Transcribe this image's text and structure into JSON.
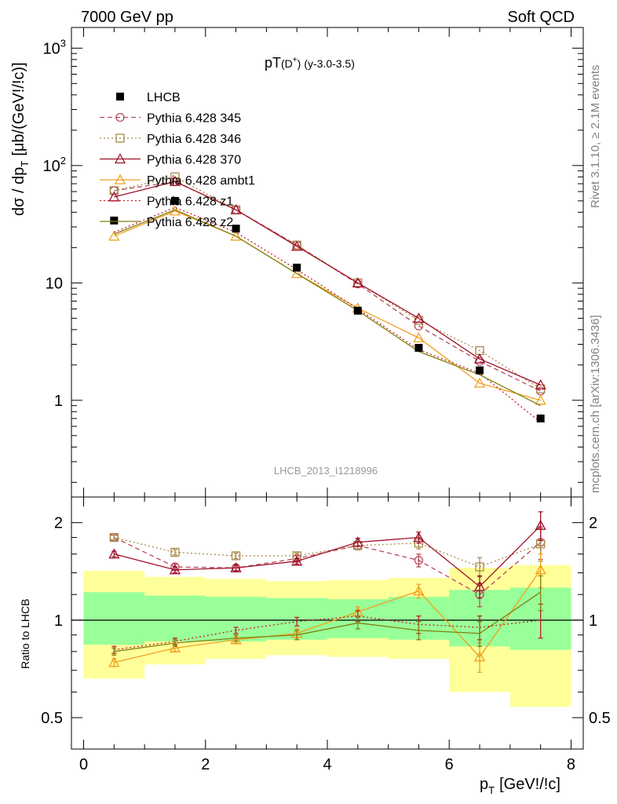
{
  "header": {
    "left": "7000 GeV pp",
    "right": "Soft QCD"
  },
  "side": {
    "rivet": "Rivet 3.1.10, ≥ 2.1M events",
    "mcplots": "mcplots.cern.ch [arXiv:1306.3436]"
  },
  "watermark": "LHCB_2013_I1218996",
  "axes": {
    "ylabel_main": "dσ / dp",
    "ylabel_main_sub": "T",
    "ylabel_main_unit": "[μb/(GeV!/!c)]",
    "ylabel_ratio": "Ratio to LHCB",
    "xlabel": "p",
    "xlabel_sub": "T",
    "xlabel_unit": "[GeV!/!c]"
  },
  "colors": {
    "data": "#000000",
    "p345": "#b84a5b",
    "p346": "#a88a4a",
    "p370": "#a0102a",
    "ambt1": "#f0a020",
    "z1": "#c0202a",
    "z2": "#808010",
    "band_inner": "#99ff99",
    "band_outer": "#ffff99"
  },
  "chart_data": {
    "type": "line",
    "title": "pT(D⁺) (y-3.0-3.5)",
    "title_main": "pT",
    "title_particle": "(D",
    "title_sup": "+",
    "title_close": ")",
    "title_cut": "(y-3.0-3.5)",
    "xlim": [
      -0.2,
      8.2
    ],
    "ylim_main": [
      0.15,
      1500
    ],
    "ylim_ratio": [
      0.4,
      2.4
    ],
    "yscale": "log",
    "x_ticks": [
      "0",
      "2",
      "4",
      "6",
      "8"
    ],
    "y_ticks_main": [
      {
        "v": 1,
        "label": "1"
      },
      {
        "v": 10,
        "label": "10"
      },
      {
        "v": 100,
        "label": "10",
        "sup": "2"
      },
      {
        "v": 1000,
        "label": "10",
        "sup": "3"
      }
    ],
    "y_ticks_ratio": [
      {
        "v": 0.5,
        "label": "0.5"
      },
      {
        "v": 1,
        "label": "1"
      },
      {
        "v": 2,
        "label": "2"
      }
    ],
    "x": [
      0.5,
      1.5,
      2.5,
      3.5,
      4.5,
      5.5,
      6.5,
      7.5
    ],
    "bins": [
      [
        0,
        1
      ],
      [
        1,
        2
      ],
      [
        2,
        3
      ],
      [
        3,
        4
      ],
      [
        4,
        5
      ],
      [
        5,
        6
      ],
      [
        6,
        7
      ],
      [
        7,
        8
      ]
    ],
    "data": {
      "name": "LHCB",
      "values": [
        34,
        50,
        29,
        13.5,
        5.8,
        2.8,
        1.8,
        0.7
      ],
      "band_inner": [
        [
          0.84,
          1.22
        ],
        [
          0.86,
          1.19
        ],
        [
          0.86,
          1.18
        ],
        [
          0.87,
          1.17
        ],
        [
          0.88,
          1.16
        ],
        [
          0.87,
          1.18
        ],
        [
          0.83,
          1.24
        ],
        [
          0.81,
          1.26
        ]
      ],
      "band_outer": [
        [
          0.66,
          1.42
        ],
        [
          0.73,
          1.36
        ],
        [
          0.76,
          1.34
        ],
        [
          0.78,
          1.32
        ],
        [
          0.77,
          1.33
        ],
        [
          0.76,
          1.35
        ],
        [
          0.6,
          1.45
        ],
        [
          0.54,
          1.48
        ]
      ]
    },
    "series": [
      {
        "name": "Pythia 6.428 345",
        "style": "dashed",
        "marker": "circle",
        "color": "#b84a5b",
        "values": [
          61,
          73,
          42,
          21,
          9.8,
          4.3,
          2.15,
          1.2
        ],
        "ratio": [
          1.8,
          1.46,
          1.45,
          1.55,
          1.7,
          1.53,
          1.2,
          1.74
        ],
        "ratio_err": [
          0.03,
          0.03,
          0.03,
          0.03,
          0.05,
          0.07,
          0.1,
          0.2
        ]
      },
      {
        "name": "Pythia 6.428 346",
        "style": "dotted",
        "marker": "square",
        "color": "#a88a4a",
        "values": [
          61,
          80,
          42,
          21,
          10,
          4.8,
          2.65,
          1.25
        ],
        "ratio": [
          1.8,
          1.62,
          1.58,
          1.58,
          1.7,
          1.73,
          1.46,
          1.72
        ],
        "ratio_err": [
          0.03,
          0.03,
          0.03,
          0.03,
          0.05,
          0.07,
          0.1,
          0.2
        ]
      },
      {
        "name": "Pythia 6.428 370",
        "style": "solid",
        "marker": "triangle",
        "color": "#a0102a",
        "values": [
          54,
          73,
          42,
          20.5,
          10,
          5,
          2.25,
          1.35
        ],
        "ratio": [
          1.6,
          1.43,
          1.45,
          1.52,
          1.74,
          1.8,
          1.27,
          1.96
        ],
        "ratio_err": [
          0.03,
          0.03,
          0.03,
          0.03,
          0.05,
          0.07,
          0.1,
          0.2
        ]
      },
      {
        "name": "Pythia 6.428 ambt1",
        "style": "solid",
        "marker": "triangle",
        "color": "#f0a020",
        "values": [
          25,
          41,
          25,
          12,
          6.1,
          3.4,
          1.4,
          1
        ],
        "ratio": [
          0.74,
          0.82,
          0.87,
          0.91,
          1.06,
          1.23,
          0.77,
          1.43
        ],
        "ratio_err": [
          0.02,
          0.02,
          0.02,
          0.03,
          0.04,
          0.06,
          0.08,
          0.17
        ]
      },
      {
        "name": "Pythia 6.428 z1",
        "style": "dotted",
        "marker": "none",
        "color": "#c0202a",
        "values": [
          27,
          44,
          27,
          13,
          6,
          2.7,
          1.7,
          0.65
        ],
        "ratio": [
          0.81,
          0.86,
          0.93,
          0.99,
          1.03,
          0.97,
          0.95,
          1.0
        ],
        "ratio_err": [
          0.02,
          0.02,
          0.02,
          0.03,
          0.04,
          0.06,
          0.08,
          0.12
        ]
      },
      {
        "name": "Pythia 6.428 z2",
        "style": "solid",
        "marker": "none",
        "color": "#808010",
        "values": [
          26,
          42,
          25,
          12,
          5.8,
          2.6,
          1.65,
          0.9
        ],
        "ratio": [
          0.8,
          0.85,
          0.88,
          0.9,
          0.98,
          0.93,
          0.91,
          1.22
        ],
        "ratio_err": [
          0.02,
          0.02,
          0.02,
          0.03,
          0.04,
          0.06,
          0.08,
          0.15
        ]
      }
    ]
  }
}
